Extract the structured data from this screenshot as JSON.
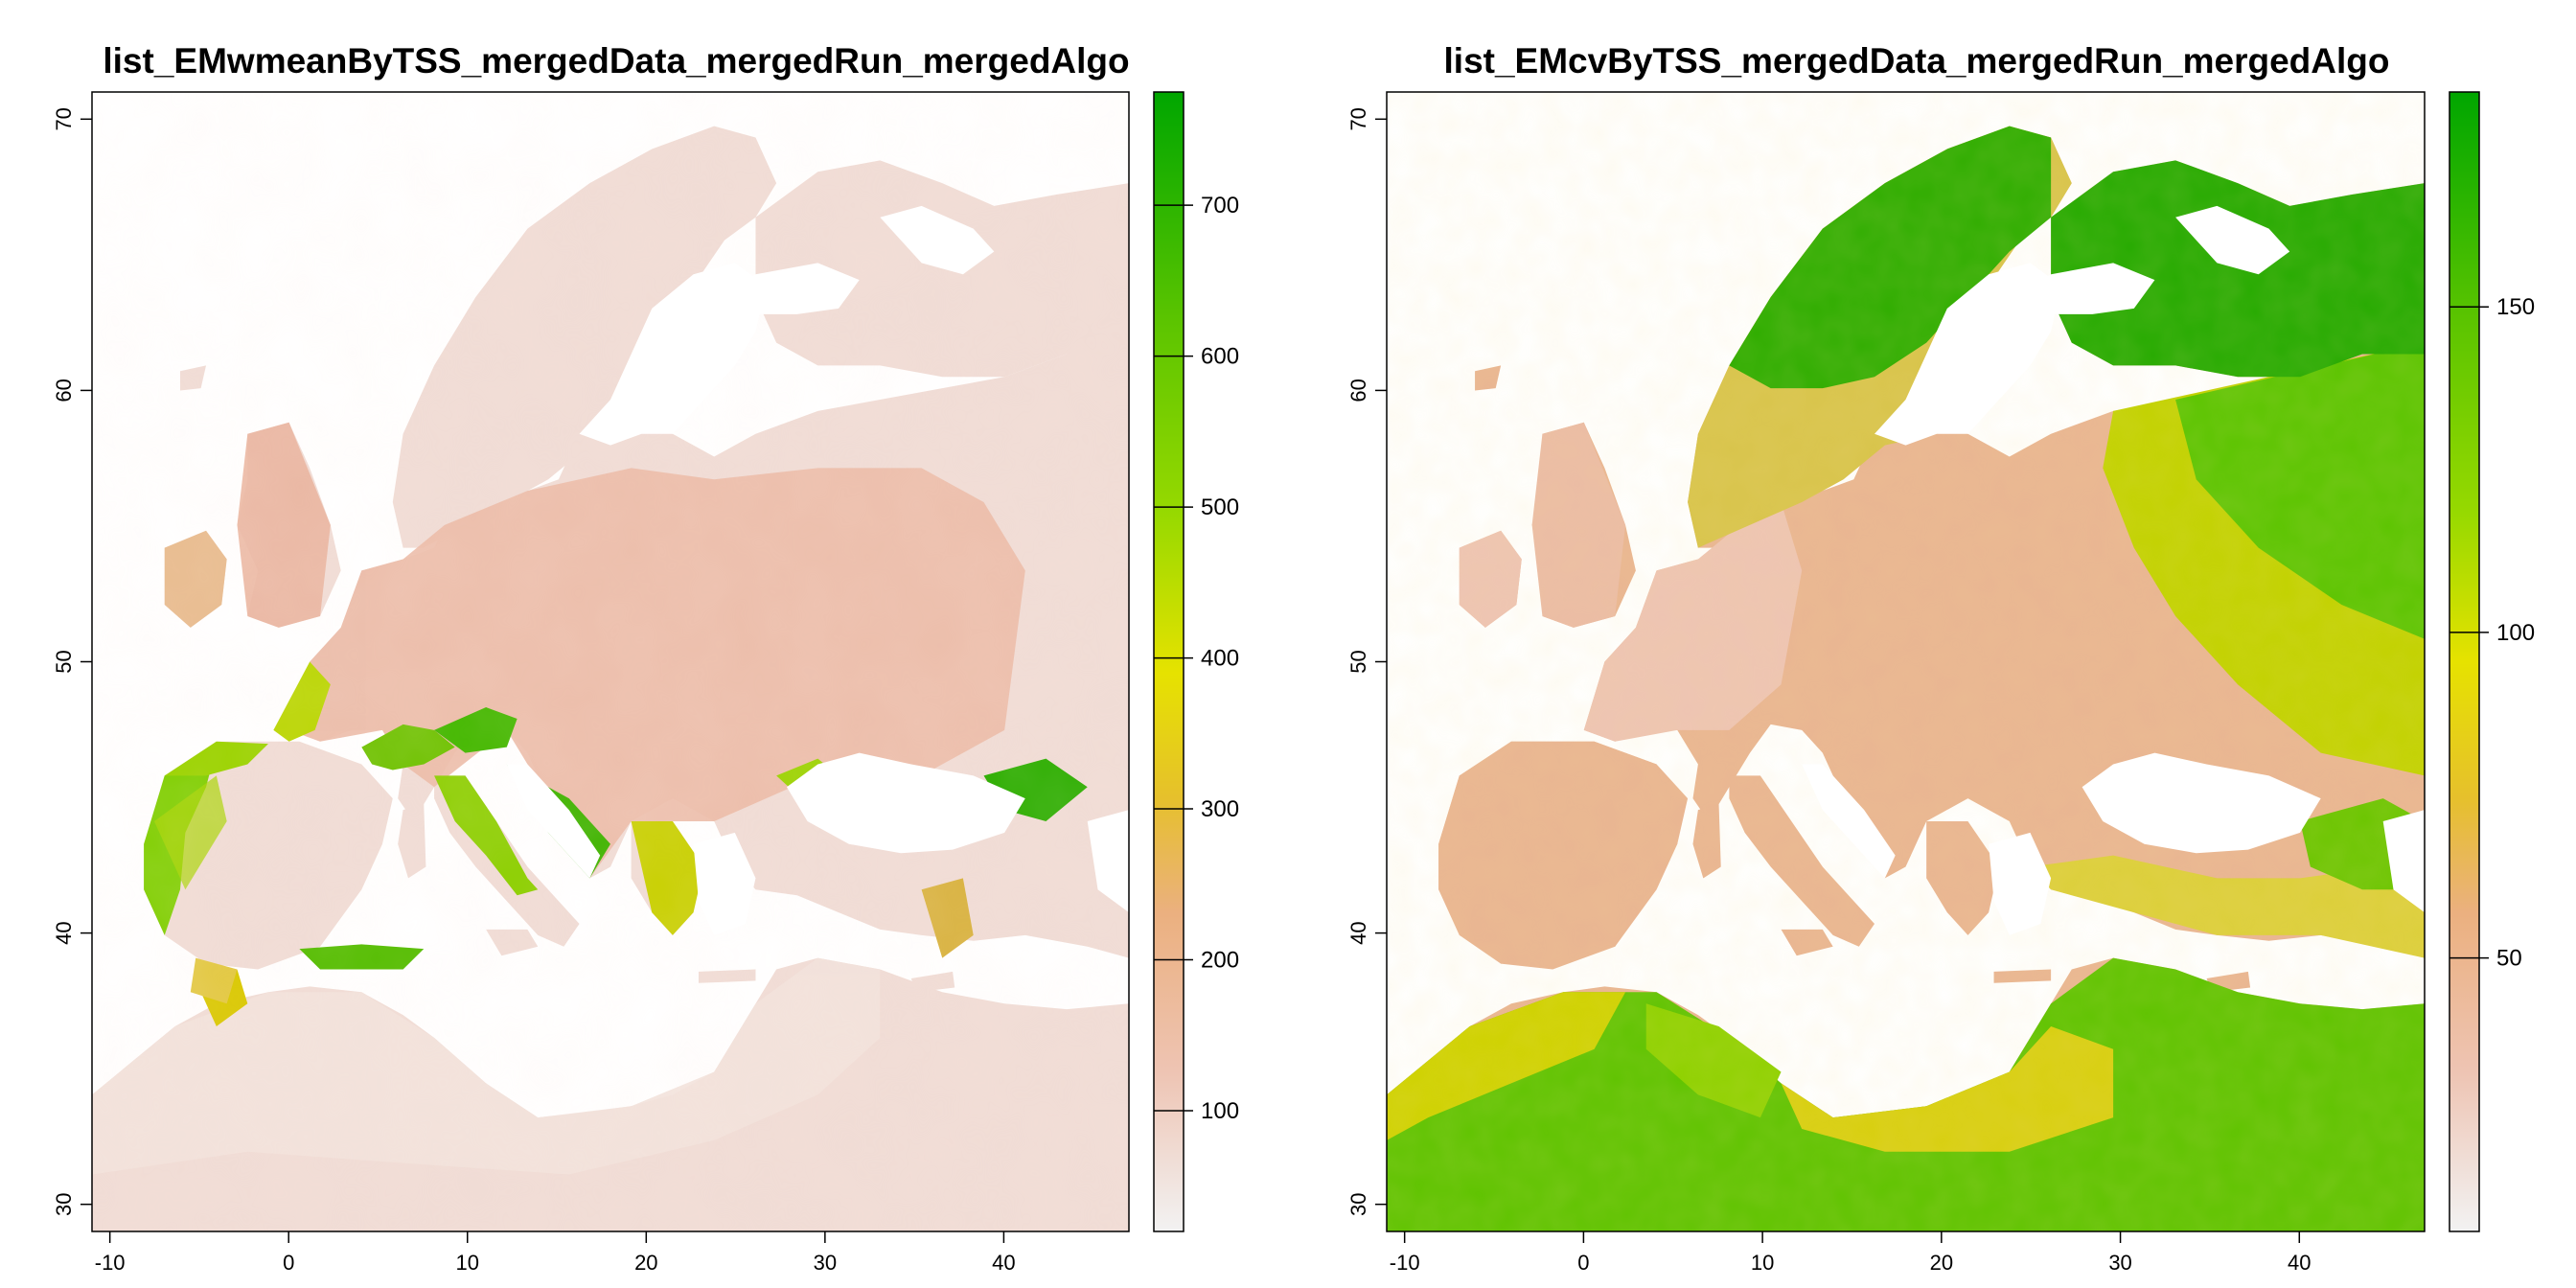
{
  "panels": [
    {
      "title": "list_EMwmeanByTSS_mergedData_mergedRun_mergedAlgo",
      "legend": {
        "min": 20,
        "max": 775,
        "ticks": [
          100,
          200,
          300,
          400,
          500,
          600,
          700
        ]
      },
      "land_style": "mean"
    },
    {
      "title": "list_EMcvByTSS_mergedData_mergedRun_mergedAlgo",
      "legend": {
        "min": 8,
        "max": 183,
        "ticks": [
          50,
          100,
          150
        ]
      },
      "land_style": "cv"
    }
  ],
  "axes": {
    "lon_range": [
      -11,
      47
    ],
    "lat_range": [
      29,
      71
    ],
    "x_ticks": [
      -10,
      0,
      10,
      20,
      30,
      40
    ],
    "y_ticks": [
      30,
      40,
      50,
      60,
      70
    ]
  },
  "palette": {
    "colors": [
      "#f2f2f2",
      "#eec4b3",
      "#ebb07f",
      "#e6c02c",
      "#e6e200",
      "#97d900",
      "#5bc400",
      "#00a600"
    ],
    "sea": "#ffffff",
    "frame": "#000000"
  }
}
